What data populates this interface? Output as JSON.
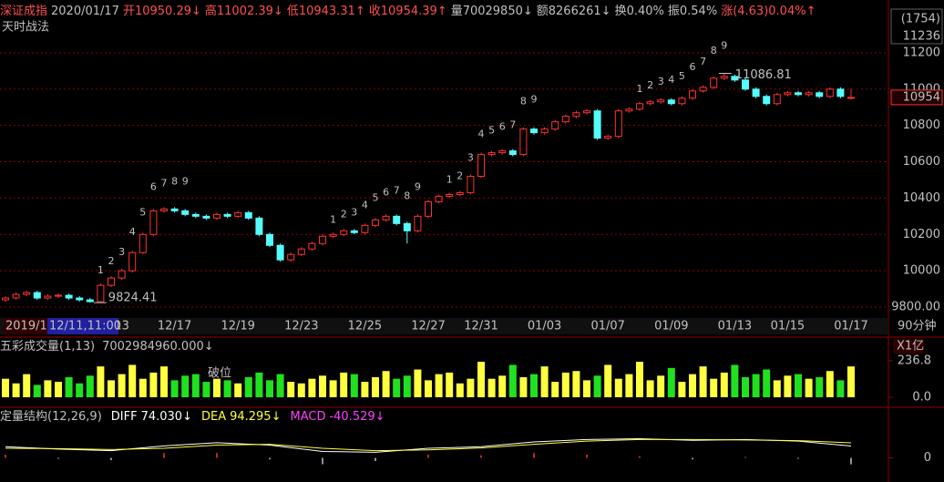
{
  "header": {
    "items": [
      {
        "text": "深证成指",
        "color": "#ff5050"
      },
      {
        "text": "2020/01/17",
        "color": "#c0c0c0"
      },
      {
        "text": "开10950.29↓",
        "color": "#ff5050"
      },
      {
        "text": "高11002.39↓",
        "color": "#ff5050"
      },
      {
        "text": "低10943.31↑",
        "color": "#ff5050"
      },
      {
        "text": "收10954.39↑",
        "color": "#ff5050"
      },
      {
        "text": "量70029850↓",
        "color": "#c0c0c0"
      },
      {
        "text": "额8266261↓",
        "color": "#c0c0c0"
      },
      {
        "text": "换0.40%",
        "color": "#c0c0c0"
      },
      {
        "text": "振0.54%",
        "color": "#c0c0c0"
      },
      {
        "text": "涨(4.63)0.04%↑",
        "color": "#ff5050"
      }
    ],
    "subtitle": "天时战法"
  },
  "footer": {
    "start": "2019/1",
    "cursor": "12/11,11:00",
    "period": "90分钟"
  },
  "chart_data": [
    {
      "type": "candlestick",
      "up_color": "#ff3232",
      "down_color": "#54fcfc",
      "grid": true,
      "categories": [
        null,
        null,
        null,
        null,
        null,
        null,
        null,
        null,
        null,
        null,
        null,
        "13",
        null,
        null,
        null,
        null,
        "12/17",
        null,
        null,
        null,
        null,
        null,
        "12/19",
        null,
        null,
        null,
        null,
        null,
        "12/23",
        null,
        null,
        null,
        null,
        null,
        "12/25",
        null,
        null,
        null,
        null,
        null,
        "12/27",
        null,
        null,
        null,
        null,
        "12/31",
        null,
        null,
        null,
        null,
        null,
        "01/03",
        null,
        null,
        null,
        null,
        null,
        "01/07",
        null,
        null,
        null,
        null,
        null,
        "01/09",
        null,
        null,
        null,
        null,
        null,
        "01/13",
        null,
        null,
        null,
        null,
        "01/15",
        null,
        null,
        null,
        null,
        null,
        "01/17"
      ],
      "open": [
        9840,
        9850,
        9870,
        9880,
        9850,
        9860,
        9865,
        9850,
        9840,
        9830,
        9920,
        9960,
        10000,
        10100,
        10200,
        10330,
        10340,
        10330,
        10310,
        10300,
        10290,
        10310,
        10300,
        10320,
        10290,
        10200,
        10140,
        10060,
        10090,
        10120,
        10150,
        10190,
        10200,
        10220,
        10210,
        10250,
        10280,
        10300,
        10260,
        10220,
        10300,
        10380,
        10410,
        10420,
        10430,
        10520,
        10640,
        10650,
        10660,
        10640,
        10780,
        10760,
        10780,
        10820,
        10850,
        10870,
        10880,
        10730,
        10740,
        10880,
        10890,
        10920,
        10930,
        10940,
        10920,
        10950,
        10990,
        11010,
        11060,
        11070,
        11050,
        11000,
        10960,
        10920,
        10970,
        10980,
        10970,
        10980,
        10960,
        11000,
        10950.29
      ],
      "high": [
        9860,
        9880,
        9890,
        9890,
        9870,
        9875,
        9875,
        9860,
        9850,
        9930,
        9970,
        10010,
        10110,
        10210,
        10340,
        10350,
        10350,
        10340,
        10320,
        10310,
        10320,
        10320,
        10330,
        10330,
        10300,
        10210,
        10150,
        10100,
        10130,
        10160,
        10200,
        10210,
        10230,
        10230,
        10260,
        10290,
        10310,
        10310,
        10270,
        10310,
        10390,
        10420,
        10430,
        10440,
        10530,
        10650,
        10660,
        10670,
        10670,
        10790,
        10790,
        10790,
        10830,
        10860,
        10880,
        10890,
        10890,
        10750,
        10890,
        10900,
        10930,
        10940,
        10950,
        10950,
        10960,
        11000,
        11020,
        11070,
        11086.81,
        11080,
        11060,
        11010,
        10970,
        10980,
        10990,
        10990,
        10990,
        10990,
        11010,
        11010,
        11002.39
      ],
      "low": [
        9830,
        9840,
        9860,
        9840,
        9840,
        9850,
        9840,
        9830,
        9824.41,
        9826,
        9910,
        9950,
        9990,
        10090,
        10190,
        10320,
        10320,
        10300,
        10290,
        10280,
        10280,
        10290,
        10290,
        10280,
        10190,
        10130,
        10050,
        10050,
        10080,
        10110,
        10140,
        10180,
        10190,
        10200,
        10200,
        10240,
        10270,
        10250,
        10150,
        10210,
        10290,
        10370,
        10400,
        10410,
        10420,
        10510,
        10630,
        10640,
        10630,
        10630,
        10750,
        10750,
        10770,
        10810,
        10840,
        10860,
        10720,
        10720,
        10730,
        10870,
        10880,
        10910,
        10920,
        10910,
        10910,
        10940,
        10980,
        11000,
        11050,
        11040,
        10990,
        10950,
        10910,
        10910,
        10960,
        10960,
        10960,
        10950,
        10950,
        10950,
        10943.31
      ],
      "close": [
        9850,
        9870,
        9880,
        9850,
        9860,
        9865,
        9850,
        9840,
        9830,
        9920,
        9960,
        10000,
        10100,
        10200,
        10330,
        10340,
        10330,
        10310,
        10300,
        10290,
        10310,
        10300,
        10320,
        10290,
        10200,
        10140,
        10060,
        10090,
        10120,
        10150,
        10190,
        10200,
        10220,
        10210,
        10250,
        10280,
        10300,
        10260,
        10220,
        10300,
        10380,
        10410,
        10420,
        10430,
        10520,
        10640,
        10650,
        10660,
        10640,
        10780,
        10760,
        10780,
        10820,
        10850,
        10870,
        10880,
        10730,
        10740,
        10880,
        10890,
        10920,
        10930,
        10940,
        10920,
        10950,
        10990,
        11010,
        11060,
        11070,
        11050,
        11000,
        10960,
        10920,
        10970,
        10980,
        10970,
        10980,
        10960,
        11000,
        10960,
        10954.39
      ],
      "high_label": {
        "index": 68,
        "text": "11086.81"
      },
      "low_label": {
        "index": 8,
        "text": "9824.41"
      },
      "last_label": "10954",
      "axis_extras": [
        "(1754)",
        "11236"
      ],
      "td_color": "#e040e0",
      "td_final_color": "#20e020",
      "td_sequences": [
        {
          "start": 9,
          "labels": [
            "1",
            "2",
            "3",
            "4",
            "5",
            "6",
            "7",
            "8",
            "9"
          ]
        },
        {
          "start": 31,
          "labels": [
            "1",
            "2",
            "3",
            "4",
            "5",
            "6",
            "7",
            "8",
            "9"
          ]
        },
        {
          "start": 42,
          "labels": [
            "1",
            "2",
            "3",
            "4",
            "5",
            "6",
            "7",
            "8",
            "9"
          ]
        },
        {
          "start": 60,
          "labels": [
            "1",
            "2",
            "3",
            "4",
            "5",
            "6",
            "7",
            "8",
            "9"
          ]
        }
      ],
      "ylim": [
        9760,
        11290
      ],
      "yticks": [
        {
          "value": 9800,
          "label": "9800.00"
        },
        10000,
        10200,
        10400,
        10600,
        10800,
        11000,
        11200
      ]
    },
    {
      "type": "bar",
      "title": "五彩成交量(1,13)",
      "subtitle": "7002984960.000↓",
      "unit": "X1亿",
      "annotation": "破位",
      "up_color": "#ffff40",
      "down_color": "#20e020",
      "values": [
        120,
        90,
        150,
        80,
        110,
        100,
        130,
        90,
        140,
        200,
        110,
        150,
        210,
        120,
        160,
        200,
        110,
        140,
        150,
        100,
        120,
        110,
        90,
        130,
        160,
        110,
        150,
        100,
        90,
        120,
        140,
        110,
        160,
        150,
        100,
        130,
        170,
        120,
        140,
        180,
        110,
        150,
        160,
        90,
        120,
        230,
        120,
        140,
        210,
        130,
        150,
        200,
        100,
        160,
        170,
        110,
        140,
        210,
        120,
        150,
        230,
        110,
        140,
        190,
        100,
        150,
        200,
        120,
        160,
        210,
        130,
        150,
        180,
        110,
        140,
        150,
        120,
        130,
        170,
        110,
        200
      ],
      "ylim": [
        0,
        260
      ],
      "yticks": [
        236.8,
        {
          "value": 0,
          "label": "0.0"
        }
      ]
    },
    {
      "type": "line",
      "title": "定量结构(12,26,9)",
      "x": [
        0,
        5,
        10,
        15,
        20,
        25,
        30,
        35,
        40,
        45,
        50,
        55,
        60,
        65,
        70,
        75,
        80
      ],
      "series": [
        {
          "name": "DIFF",
          "last_label": "74.030↓",
          "color": "#ffffff",
          "values": [
            70,
            55,
            45,
            75,
            95,
            80,
            40,
            35,
            60,
            70,
            100,
            115,
            120,
            110,
            115,
            105,
            74.03
          ]
        },
        {
          "name": "DEA",
          "last_label": "94.295↓",
          "color": "#ffff40",
          "values": [
            60,
            58,
            52,
            60,
            80,
            85,
            60,
            45,
            50,
            62,
            85,
            105,
            115,
            115,
            112,
            108,
            94.295
          ]
        },
        {
          "name": "MACD",
          "last_label": "-40.529↓",
          "color": "#ff40ff",
          "style": "bar",
          "bar_colors": [
            "#ff3232",
            "#c0c0c0"
          ],
          "values": [
            20,
            -6,
            -14,
            30,
            30,
            -10,
            -40,
            -20,
            20,
            16,
            30,
            20,
            10,
            -10,
            6,
            -6,
            -40.529
          ]
        }
      ],
      "ylim": [
        -100,
        300
      ],
      "yticks": [
        0
      ]
    }
  ]
}
